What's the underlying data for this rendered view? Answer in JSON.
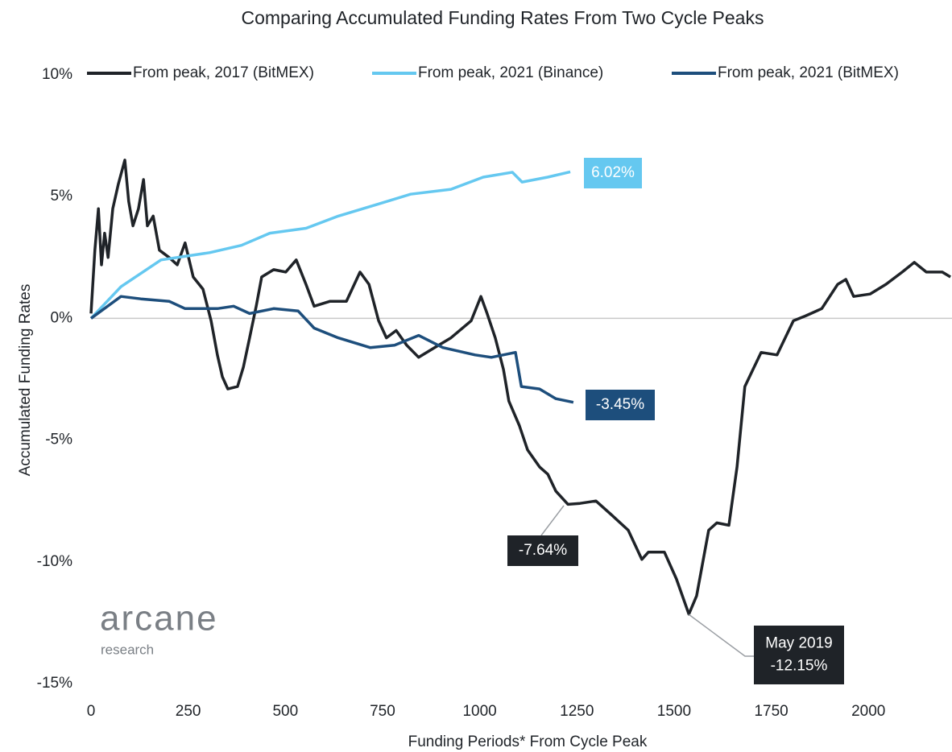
{
  "chart_data": {
    "type": "line",
    "title": "Comparing Accumulated Funding Rates From Two Cycle Peaks",
    "x_label": "Funding Periods* From Cycle Peak",
    "y_label": "Accumulated Funding Rates",
    "xlim": [
      0,
      2215
    ],
    "ylim": [
      -15,
      10
    ],
    "xticks": [
      0,
      250,
      500,
      750,
      1000,
      1250,
      1500,
      1750,
      2000
    ],
    "yticks": [
      {
        "value": -15,
        "label": "-15%"
      },
      {
        "value": -10,
        "label": "-10%"
      },
      {
        "value": -5,
        "label": "-5%"
      },
      {
        "value": 0,
        "label": "0%"
      },
      {
        "value": 5,
        "label": "5%"
      },
      {
        "value": 10,
        "label": "10%"
      }
    ],
    "zero_line": true,
    "legend": "top",
    "series": [
      {
        "name": "From peak, 2017 (BitMEX)",
        "color": "#1f2328",
        "x": [
          0,
          10,
          19,
          27,
          35,
          44,
          56,
          70,
          87,
          97,
          108,
          122,
          135,
          145,
          160,
          176,
          201,
          222,
          242,
          263,
          288,
          309,
          325,
          338,
          352,
          377,
          392,
          408,
          425,
          439,
          470,
          501,
          528,
          553,
          574,
          615,
          657,
          692,
          715,
          740,
          760,
          785,
          812,
          843,
          884,
          926,
          978,
          1003,
          1019,
          1040,
          1061,
          1075,
          1102,
          1123,
          1154,
          1175,
          1196,
          1227,
          1258,
          1299,
          1341,
          1382,
          1417,
          1434,
          1475,
          1506,
          1538,
          1558,
          1589,
          1610,
          1641,
          1662,
          1682,
          1703,
          1724,
          1765,
          1807,
          1838,
          1880,
          1921,
          1942,
          1962,
          2004,
          2045,
          2087,
          2118,
          2149,
          2190,
          2211
        ],
        "values": [
          0.2,
          2.8,
          4.5,
          2.2,
          3.5,
          2.5,
          4.5,
          5.5,
          6.5,
          4.8,
          3.8,
          4.5,
          5.7,
          3.8,
          4.2,
          2.8,
          2.5,
          2.2,
          3.1,
          1.7,
          1.2,
          -0.1,
          -1.5,
          -2.4,
          -2.9,
          -2.8,
          -2.0,
          -0.8,
          0.5,
          1.7,
          2.0,
          1.9,
          2.4,
          1.4,
          0.5,
          0.7,
          0.7,
          1.9,
          1.4,
          -0.1,
          -0.8,
          -0.5,
          -1.1,
          -1.6,
          -1.2,
          -0.8,
          -0.1,
          0.9,
          0.2,
          -0.8,
          -2.1,
          -3.4,
          -4.4,
          -5.4,
          -6.1,
          -6.4,
          -7.1,
          -7.64,
          -7.6,
          -7.5,
          -8.1,
          -8.7,
          -9.9,
          -9.6,
          -9.6,
          -10.7,
          -12.15,
          -11.4,
          -8.7,
          -8.4,
          -8.5,
          -6.1,
          -2.8,
          -2.1,
          -1.4,
          -1.5,
          -0.1,
          0.1,
          0.4,
          1.4,
          1.6,
          0.9,
          1.0,
          1.4,
          1.9,
          2.3,
          1.9,
          1.9,
          1.7
        ]
      },
      {
        "name": "From peak, 2021 (Binance)",
        "color": "#65c8f0",
        "x": [
          0,
          77,
          180,
          305,
          387,
          460,
          553,
          636,
          740,
          822,
          926,
          1009,
          1084,
          1109,
          1175,
          1233
        ],
        "values": [
          0,
          1.3,
          2.4,
          2.7,
          3.0,
          3.5,
          3.7,
          4.2,
          4.7,
          5.1,
          5.3,
          5.8,
          6.0,
          5.6,
          5.8,
          6.02
        ]
      },
      {
        "name": "From peak, 2021 (BitMEX)",
        "color": "#1d4e7c",
        "x": [
          0,
          77,
          128,
          201,
          242,
          325,
          367,
          408,
          470,
          533,
          574,
          636,
          718,
          781,
          843,
          905,
          988,
          1030,
          1092,
          1107,
          1154,
          1196,
          1241
        ],
        "values": [
          0,
          0.9,
          0.8,
          0.7,
          0.4,
          0.4,
          0.5,
          0.2,
          0.4,
          0.3,
          -0.4,
          -0.8,
          -1.2,
          -1.1,
          -0.7,
          -1.2,
          -1.5,
          -1.6,
          -1.4,
          -2.8,
          -2.9,
          -3.3,
          -3.45
        ]
      }
    ],
    "annotations": [
      {
        "text": [
          "6.02%"
        ],
        "color": "#65c8f0"
      },
      {
        "text": [
          "-3.45%"
        ],
        "color": "#1d4e7c"
      },
      {
        "text": [
          "-7.64%"
        ],
        "color": "#1f2328"
      },
      {
        "text": [
          "May 2019",
          "-12.15%"
        ],
        "color": "#1f2328"
      }
    ],
    "logo": {
      "name": "arcane",
      "sub": "research"
    }
  }
}
